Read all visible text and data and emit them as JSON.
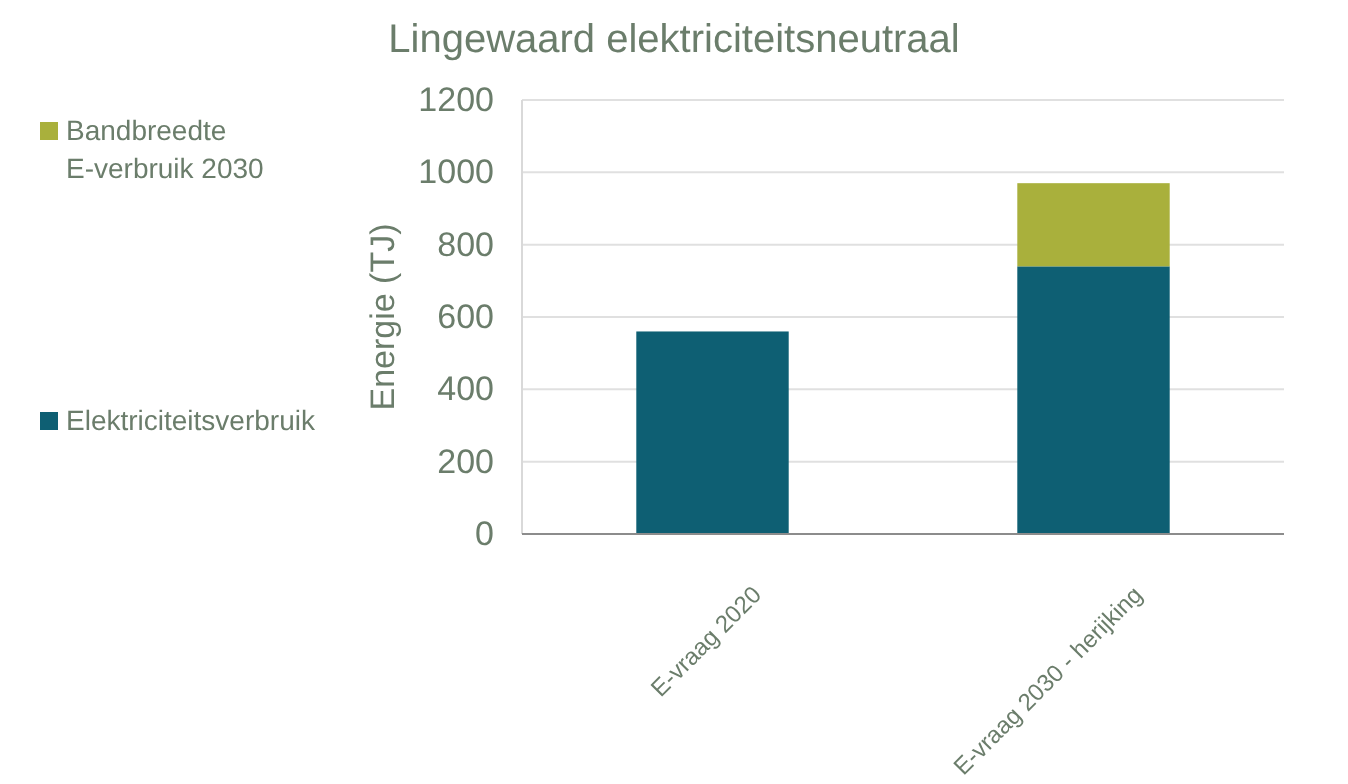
{
  "chart_data": {
    "type": "bar",
    "title": "Lingewaard elektriciteitsneutraal",
    "ylabel": "Energie (TJ)",
    "categories": [
      "E-vraag 2020",
      "E-vraag 2030 - herijking"
    ],
    "series": [
      {
        "name": "Elektriciteitsverbruik",
        "color": "#0e5f73",
        "values": [
          560,
          740
        ]
      },
      {
        "name": "Bandbreedte E-verbruik 2030",
        "color": "#a9b03c",
        "values": [
          0,
          230
        ]
      }
    ],
    "stacked": true,
    "ylim": [
      0,
      1200
    ],
    "yticks": [
      0,
      200,
      400,
      600,
      800,
      1000,
      1200
    ],
    "grid": "y",
    "legend": "left"
  }
}
